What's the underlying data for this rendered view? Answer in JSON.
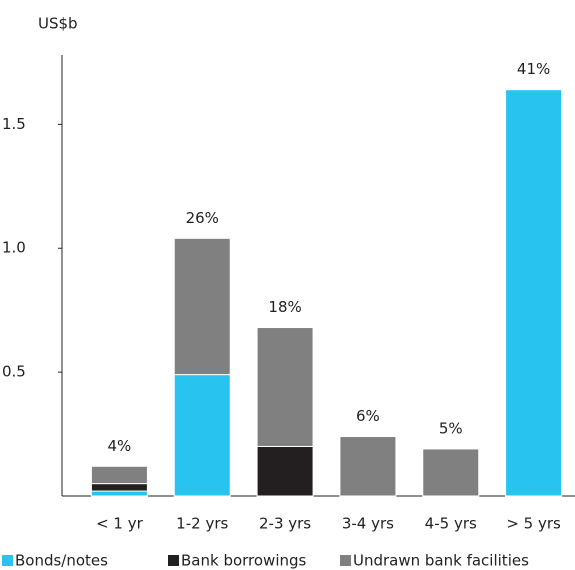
{
  "chart_data": {
    "type": "stacked_bar",
    "y_label": "US$b",
    "categories": [
      "< 1 yr",
      "1-2 yrs",
      "2-3 yrs",
      "3-4 yrs",
      "4-5 yrs",
      "> 5 yrs"
    ],
    "series": [
      {
        "name": "Bonds/notes",
        "color": "#29c3ef",
        "values": [
          0.02,
          0.49,
          0,
          0,
          0,
          1.64
        ]
      },
      {
        "name": "Bank borrowings",
        "color": "#231f20",
        "values": [
          0.03,
          0,
          0.2,
          0,
          0,
          0
        ]
      },
      {
        "name": "Undrawn bank facilities",
        "color": "#808080",
        "values": [
          0.07,
          0.55,
          0.48,
          0.24,
          0.19,
          0
        ]
      }
    ],
    "annotations": [
      "4%",
      "26%",
      "18%",
      "6%",
      "5%",
      "41%"
    ],
    "ylim": [
      0,
      1.78
    ],
    "yticks": [
      0.5,
      {
        "value": 1,
        "label": "1.0"
      },
      1.5
    ],
    "legend": "bottom"
  }
}
